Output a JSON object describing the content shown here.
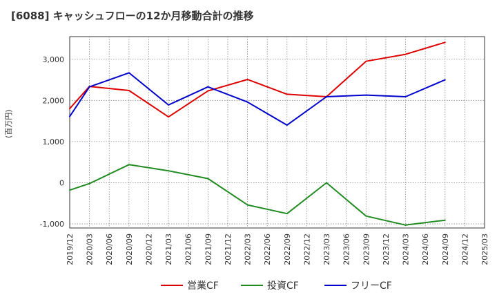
{
  "chart_data": {
    "type": "line",
    "title": "[6088]  キャッシュフローの12か月移動合計の推移",
    "ylabel": "(百万円)",
    "xlabel": "",
    "ylim": [
      -1100,
      3550
    ],
    "yticks": [
      -1000,
      0,
      1000,
      2000,
      3000
    ],
    "ytick_labels": [
      "-1,000",
      "0",
      "1,000",
      "2,000",
      "3,000"
    ],
    "categories": [
      "2019/12",
      "2020/03",
      "2020/06",
      "2020/09",
      "2020/12",
      "2021/03",
      "2021/06",
      "2021/09",
      "2021/12",
      "2022/03",
      "2022/06",
      "2022/09",
      "2022/12",
      "2023/03",
      "2023/06",
      "2023/09",
      "2023/12",
      "2024/03",
      "2024/06",
      "2024/09",
      "2024/12",
      "2025/03"
    ],
    "series": [
      {
        "name": "営業CF",
        "color": "#dd0000",
        "values": [
          1800,
          2340,
          null,
          2240,
          null,
          1600,
          null,
          2230,
          null,
          2510,
          null,
          2150,
          null,
          2090,
          null,
          2950,
          null,
          3120,
          null,
          3410,
          null,
          null
        ]
      },
      {
        "name": "投資CF",
        "color": "#228b22",
        "values": [
          -180,
          -20,
          null,
          440,
          null,
          290,
          null,
          100,
          null,
          -540,
          null,
          -750,
          null,
          0,
          null,
          -810,
          null,
          -1030,
          null,
          -910,
          null,
          null
        ]
      },
      {
        "name": "フリーCF",
        "color": "#0000cc",
        "values": [
          1610,
          2330,
          null,
          2670,
          null,
          1890,
          null,
          2330,
          null,
          1960,
          null,
          1400,
          null,
          2090,
          null,
          2130,
          null,
          2090,
          null,
          2500,
          null,
          null
        ]
      }
    ],
    "grid": true,
    "legend_position": "bottom"
  }
}
